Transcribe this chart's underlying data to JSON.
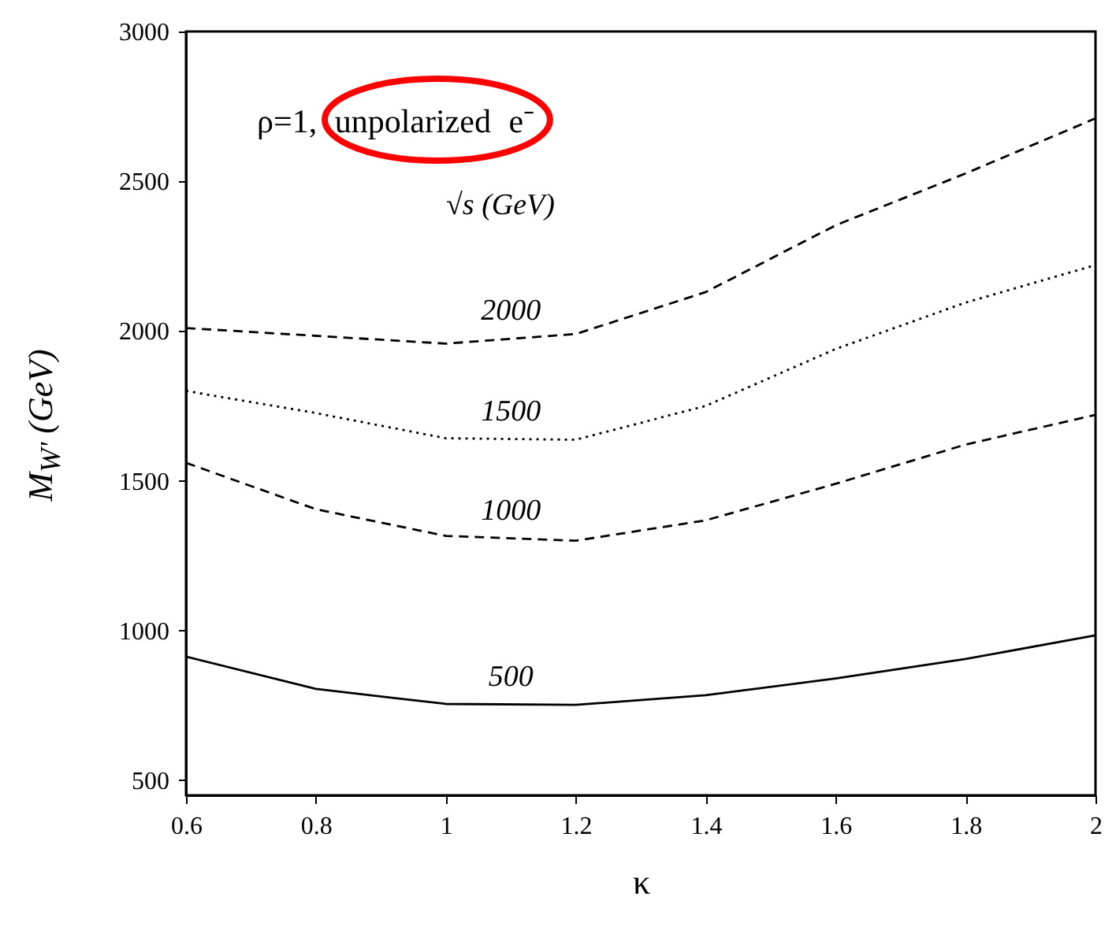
{
  "chart_data": {
    "type": "line",
    "xlabel": "κ",
    "ylabel": "M$_{W'}$ (GeV)",
    "x": [
      0.6,
      0.8,
      1.0,
      1.2,
      1.4,
      1.6,
      1.8,
      2.0
    ],
    "xlim": [
      0.6,
      2
    ],
    "xticks": [
      0.6,
      0.8,
      1,
      1.2,
      1.4,
      1.6,
      1.8,
      2
    ],
    "ylim": [
      450,
      3000
    ],
    "yticks": [
      500,
      1000,
      1500,
      2000,
      2500,
      3000
    ],
    "legend_title": "√s (GeV)",
    "annotations": [
      "ρ=1, unpolarized e⁻"
    ],
    "grid": false,
    "marker": "none",
    "series": [
      {
        "name": "500",
        "color": "#000000",
        "line_style": "solid",
        "values": [
          913,
          805,
          755,
          752,
          784,
          840,
          905,
          984
        ]
      },
      {
        "name": "1000",
        "color": "#000000",
        "line_style": "dashed",
        "values": [
          1560,
          1405,
          1316,
          1300,
          1368,
          1490,
          1621,
          1720
        ]
      },
      {
        "name": "1500",
        "color": "#000000",
        "line_style": "dotted",
        "values": [
          1800,
          1726,
          1642,
          1637,
          1750,
          1940,
          2095,
          2220
        ]
      },
      {
        "name": "2000",
        "color": "#000000",
        "line_style": "dashed",
        "values": [
          2010,
          1984,
          1958,
          1990,
          2130,
          2353,
          2526,
          2710
        ]
      }
    ]
  }
}
